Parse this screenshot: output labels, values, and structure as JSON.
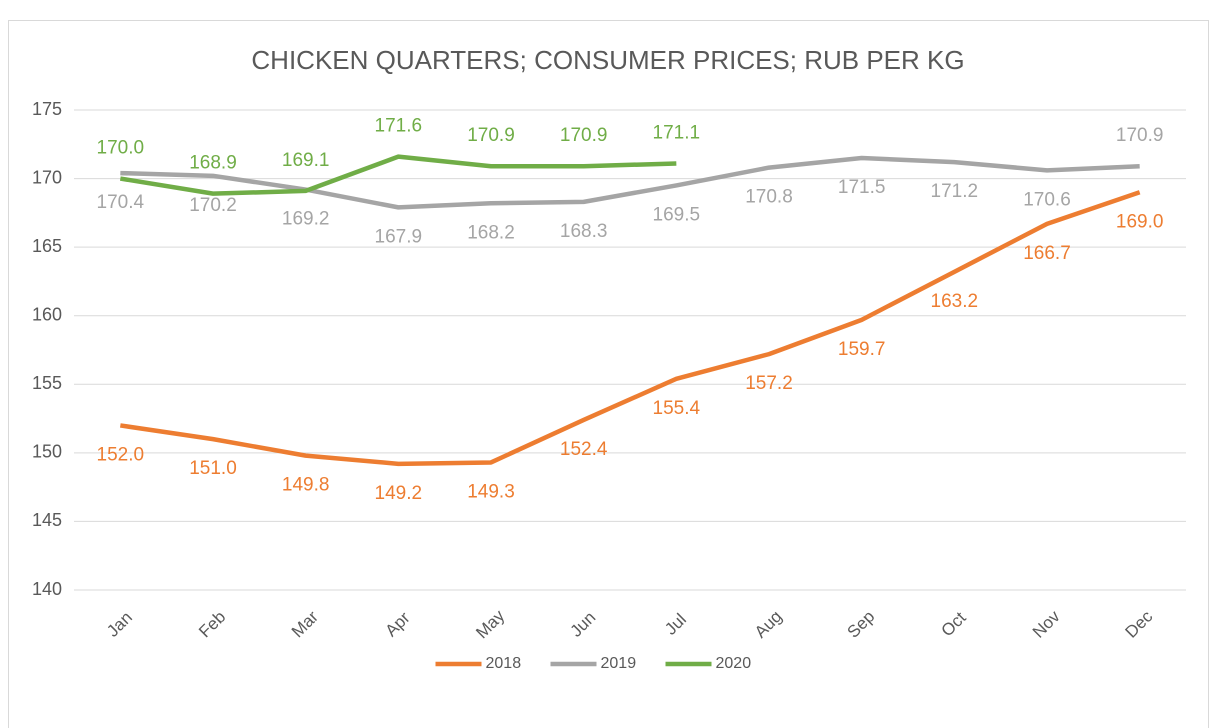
{
  "chart_data": {
    "type": "line",
    "title": "CHICKEN QUARTERS; CONSUMER PRICES; RUB PER KG",
    "categories": [
      "Jan",
      "Feb",
      "Mar",
      "Apr",
      "May",
      "Jun",
      "Jul",
      "Aug",
      "Sep",
      "Oct",
      "Nov",
      "Dec"
    ],
    "series": [
      {
        "name": "2018",
        "color": "#ed7d31",
        "values": [
          152,
          151,
          149.8,
          149.2,
          149.3,
          152.4,
          155.4,
          157.2,
          159.7,
          163.2,
          166.7,
          169
        ],
        "value_labels": [
          "152.0",
          "151.0",
          "149.8",
          "149.2",
          "149.3",
          "152.4",
          "155.4",
          "157.2",
          "159.7",
          "163.2",
          "166.7",
          "169.0"
        ]
      },
      {
        "name": "2019",
        "color": "#a5a5a5",
        "values": [
          170.4,
          170.2,
          169.2,
          167.9,
          168.2,
          168.3,
          169.5,
          170.8,
          171.5,
          171.2,
          170.6,
          170.9
        ],
        "value_labels": [
          "170.4",
          "170.2",
          "169.2",
          "167.9",
          "168.2",
          "168.3",
          "169.5",
          "170.8",
          "171.5",
          "171.2",
          "170.6",
          "170.9"
        ]
      },
      {
        "name": "2020",
        "color": "#70ad47",
        "values": [
          170,
          168.9,
          169.1,
          171.6,
          170.9,
          170.9,
          171.1,
          null,
          null,
          null,
          null,
          null
        ],
        "value_labels": [
          "170.0",
          "168.9",
          "169.1",
          "171.6",
          "170.9",
          "170.9",
          "171.1",
          null,
          null,
          null,
          null,
          null
        ]
      }
    ],
    "ylim": [
      140,
      175
    ],
    "yticks": [
      140,
      145,
      150,
      155,
      160,
      165,
      170,
      175
    ],
    "grid": true,
    "legend": "bottom"
  }
}
